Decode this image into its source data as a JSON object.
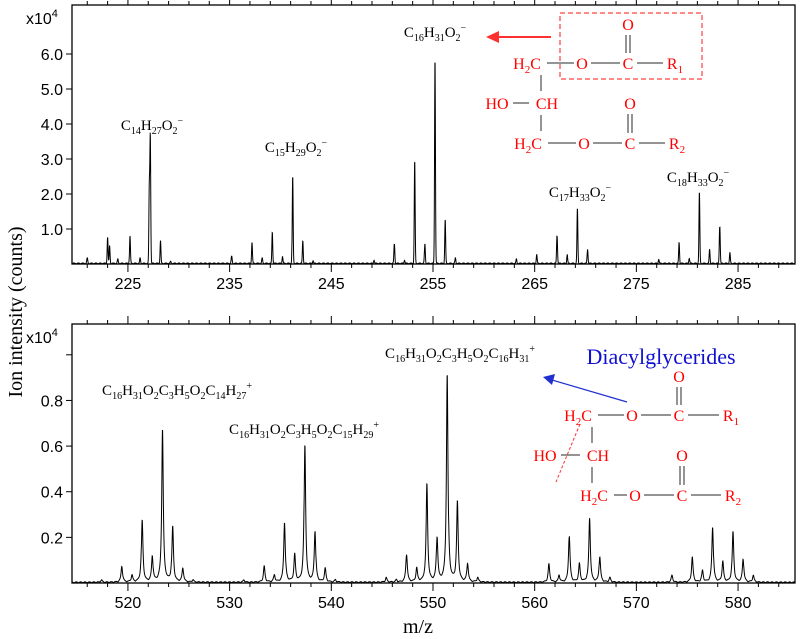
{
  "chart_data": [
    {
      "type": "line",
      "panel": "top",
      "xlim": [
        219.5,
        290.6
      ],
      "ylim": [
        0,
        7.4
      ],
      "y_multiplier": "x10^4",
      "xticks": [
        225,
        235,
        245,
        255,
        265,
        275,
        285
      ],
      "yticks": [
        "1.0",
        "2.0",
        "3.0",
        "4.0",
        "5.0",
        "6.0"
      ],
      "peaks": [
        [
          221.0,
          0.15
        ],
        [
          223.0,
          0.75
        ],
        [
          223.2,
          0.5
        ],
        [
          224.0,
          0.12
        ],
        [
          225.2,
          0.78
        ],
        [
          226.2,
          0.15
        ],
        [
          227.2,
          3.62
        ],
        [
          227.1,
          2.15
        ],
        [
          228.2,
          0.65
        ],
        [
          229.2,
          0.05
        ],
        [
          235.2,
          0.2
        ],
        [
          237.2,
          0.6
        ],
        [
          238.2,
          0.15
        ],
        [
          239.2,
          0.9
        ],
        [
          240.2,
          0.2
        ],
        [
          241.2,
          2.5
        ],
        [
          242.2,
          0.65
        ],
        [
          243.2,
          0.08
        ],
        [
          249.2,
          0.1
        ],
        [
          251.2,
          0.55
        ],
        [
          252.2,
          0.1
        ],
        [
          253.2,
          2.95
        ],
        [
          254.2,
          0.55
        ],
        [
          255.2,
          5.9
        ],
        [
          256.2,
          1.25
        ],
        [
          257.2,
          0.15
        ],
        [
          263.2,
          0.12
        ],
        [
          265.2,
          0.25
        ],
        [
          267.2,
          0.8
        ],
        [
          268.2,
          0.25
        ],
        [
          269.2,
          1.58
        ],
        [
          270.2,
          0.4
        ],
        [
          277.2,
          0.12
        ],
        [
          279.2,
          0.6
        ],
        [
          280.2,
          0.15
        ],
        [
          281.2,
          2.05
        ],
        [
          282.2,
          0.4
        ],
        [
          283.2,
          1.07
        ],
        [
          284.2,
          0.3
        ]
      ],
      "annotations": [
        "C14H27O2−",
        "C15H29O2−",
        "C16H31O2−",
        "C17H33O2−",
        "C18H33O2−"
      ]
    },
    {
      "type": "line",
      "panel": "bottom",
      "xlim": [
        514.5,
        585.6
      ],
      "ylim": [
        0,
        1.135
      ],
      "y_multiplier": "x10^4",
      "xticks": [
        520,
        530,
        540,
        550,
        560,
        570,
        580
      ],
      "yticks": [
        "0.2",
        "0.4",
        "0.6",
        "0.8"
      ],
      "peaks": [
        [
          517.4,
          0.01
        ],
        [
          519.4,
          0.07
        ],
        [
          520.4,
          0.03
        ],
        [
          521.4,
          0.27
        ],
        [
          522.4,
          0.11
        ],
        [
          523.4,
          0.67
        ],
        [
          524.4,
          0.24
        ],
        [
          525.4,
          0.06
        ],
        [
          526.4,
          0.01
        ],
        [
          531.4,
          0.01
        ],
        [
          533.4,
          0.07
        ],
        [
          534.4,
          0.03
        ],
        [
          535.4,
          0.26
        ],
        [
          536.4,
          0.12
        ],
        [
          537.4,
          0.6
        ],
        [
          538.4,
          0.22
        ],
        [
          539.4,
          0.06
        ],
        [
          540.4,
          0.01
        ],
        [
          545.4,
          0.02
        ],
        [
          546.4,
          0.01
        ],
        [
          547.4,
          0.12
        ],
        [
          548.4,
          0.06
        ],
        [
          549.4,
          0.43
        ],
        [
          550.4,
          0.19
        ],
        [
          551.4,
          0.91
        ],
        [
          552.4,
          0.35
        ],
        [
          553.4,
          0.08
        ],
        [
          554.4,
          0.02
        ],
        [
          561.4,
          0.08
        ],
        [
          562.4,
          0.03
        ],
        [
          563.4,
          0.2
        ],
        [
          564.4,
          0.08
        ],
        [
          565.4,
          0.28
        ],
        [
          566.4,
          0.11
        ],
        [
          567.4,
          0.02
        ],
        [
          573.5,
          0.03
        ],
        [
          575.5,
          0.11
        ],
        [
          576.5,
          0.05
        ],
        [
          577.5,
          0.24
        ],
        [
          578.5,
          0.09
        ],
        [
          579.5,
          0.22
        ],
        [
          580.5,
          0.1
        ],
        [
          581.5,
          0.03
        ]
      ],
      "annotations": [
        "C16H31O2C3H5O2C14H27+",
        "C16H31O2C3H5O2C15H29+",
        "C16H31O2C3H5O2C16H31+",
        "Diacylglycerides"
      ]
    }
  ],
  "labels": {
    "multiplier": "x10",
    "multiplier_exp": "4",
    "ylabel": "Ion intensity (counts)",
    "xlabel": "m/z"
  },
  "structure": {
    "o_top": "O",
    "h2c": "H2C",
    "o_ester": "O",
    "c": "C",
    "r1": "R1",
    "ho": "HO",
    "ch": "CH",
    "r2": "R2"
  },
  "colors": {
    "structure": "#ff0000",
    "diag_text": "#1010d0",
    "bond": "#707070"
  }
}
